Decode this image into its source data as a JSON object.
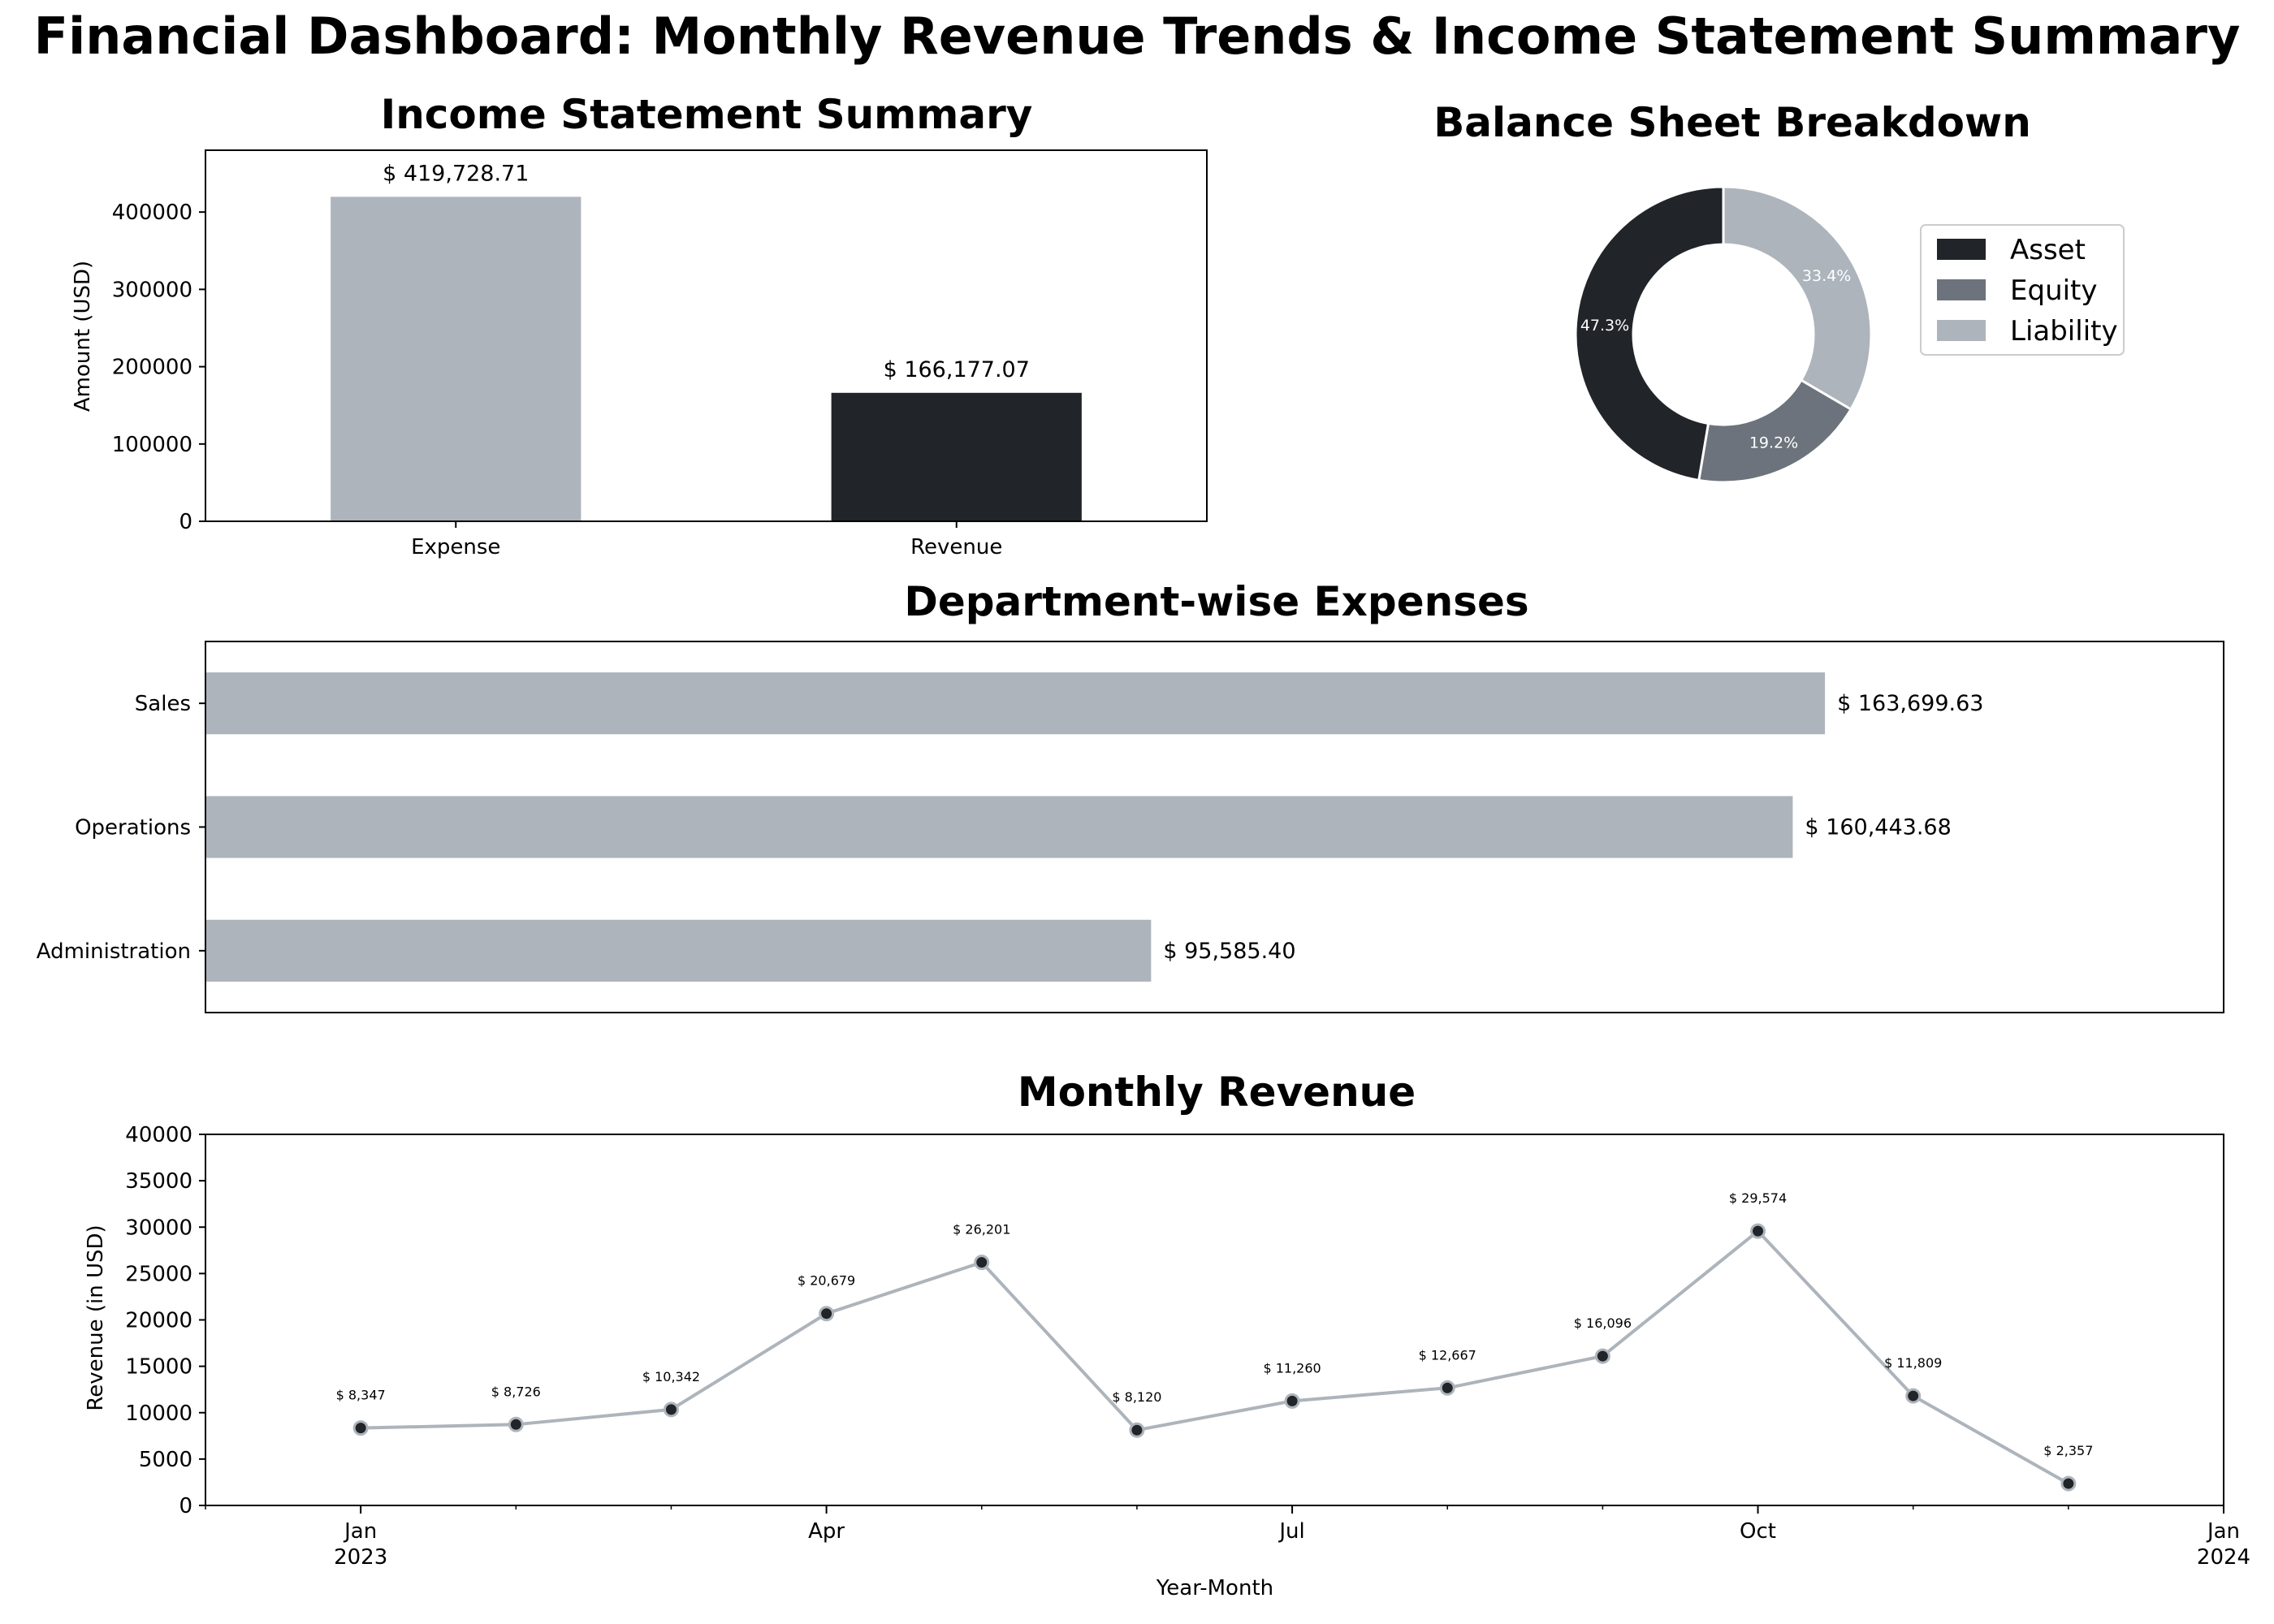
{
  "title": "Financial Dashboard: Monthly Revenue Trends & Income Statement Summary",
  "colors": {
    "dark": "#212428",
    "mid": "#6c737c",
    "light": "#adb4bb"
  },
  "chart_data": [
    {
      "id": "income",
      "type": "bar",
      "title": "Income Statement Summary",
      "xlabel": "",
      "ylabel": "Amount (USD)",
      "categories": [
        "Expense",
        "Revenue"
      ],
      "values": [
        419728.71,
        166177.07
      ],
      "value_labels": [
        "$ 419,728.71",
        "$ 166,177.07"
      ],
      "bar_colors": [
        "#adb4bb",
        "#212428"
      ],
      "ylim": [
        0,
        480000
      ],
      "yticks": [
        0,
        100000,
        200000,
        300000,
        400000
      ],
      "ytick_labels": [
        "0",
        "100000",
        "200000",
        "300000",
        "400000"
      ],
      "grid": false
    },
    {
      "id": "balance",
      "type": "pie",
      "donut": true,
      "title": "Balance Sheet Breakdown",
      "labels": [
        "Asset",
        "Equity",
        "Liability"
      ],
      "values": [
        47.3,
        19.2,
        33.4
      ],
      "pct_labels": [
        "47.3%",
        "19.2%",
        "33.4%"
      ],
      "colors": [
        "#212428",
        "#6c737c",
        "#adb4bb"
      ],
      "legend": "right"
    },
    {
      "id": "departments",
      "type": "bar",
      "orientation": "horizontal",
      "title": "Department-wise Expenses",
      "categories": [
        "Sales",
        "Operations",
        "Administration"
      ],
      "values": [
        163699.63,
        160443.68,
        95585.4
      ],
      "value_labels": [
        "$ 163,699.63",
        "$ 160,443.68",
        "$ 95,585.40"
      ],
      "xlim": [
        0,
        204000
      ],
      "bar_color": "#adb4bb",
      "grid": false
    },
    {
      "id": "monthly",
      "type": "line",
      "title": "Monthly Revenue",
      "xlabel": "Year-Month",
      "ylabel": "Revenue (in USD)",
      "x": [
        "2023-01",
        "2023-02",
        "2023-03",
        "2023-04",
        "2023-05",
        "2023-06",
        "2023-07",
        "2023-08",
        "2023-09",
        "2023-10",
        "2023-11",
        "2023-12"
      ],
      "values": [
        8347,
        8726,
        10342,
        20679,
        26201,
        8120,
        11260,
        12667,
        16096,
        29574,
        11809,
        2357
      ],
      "value_labels": [
        "$ 8,347",
        "$ 8,726",
        "$ 10,342",
        "$ 20,679",
        "$ 26,201",
        "$ 8,120",
        "$ 11,260",
        "$ 12,667",
        "$ 16,096",
        "$ 29,574",
        "$ 11,809",
        "$ 2,357"
      ],
      "xlim": [
        "2022-12",
        "2024-01"
      ],
      "ylim": [
        0,
        40000
      ],
      "yticks": [
        0,
        5000,
        10000,
        15000,
        20000,
        25000,
        30000,
        35000,
        40000
      ],
      "ytick_labels": [
        "0",
        "5000",
        "10000",
        "15000",
        "20000",
        "25000",
        "30000",
        "35000",
        "40000"
      ],
      "xticks_major": [
        {
          "x": "2023-01",
          "label": "Jan",
          "sublabel": "2023"
        },
        {
          "x": "2023-04",
          "label": "Apr",
          "sublabel": ""
        },
        {
          "x": "2023-07",
          "label": "Jul",
          "sublabel": ""
        },
        {
          "x": "2023-10",
          "label": "Oct",
          "sublabel": ""
        },
        {
          "x": "2024-01",
          "label": "Jan",
          "sublabel": "2024"
        }
      ],
      "line_color": "#adb4bb",
      "marker_color": "#212428",
      "grid": false
    }
  ]
}
